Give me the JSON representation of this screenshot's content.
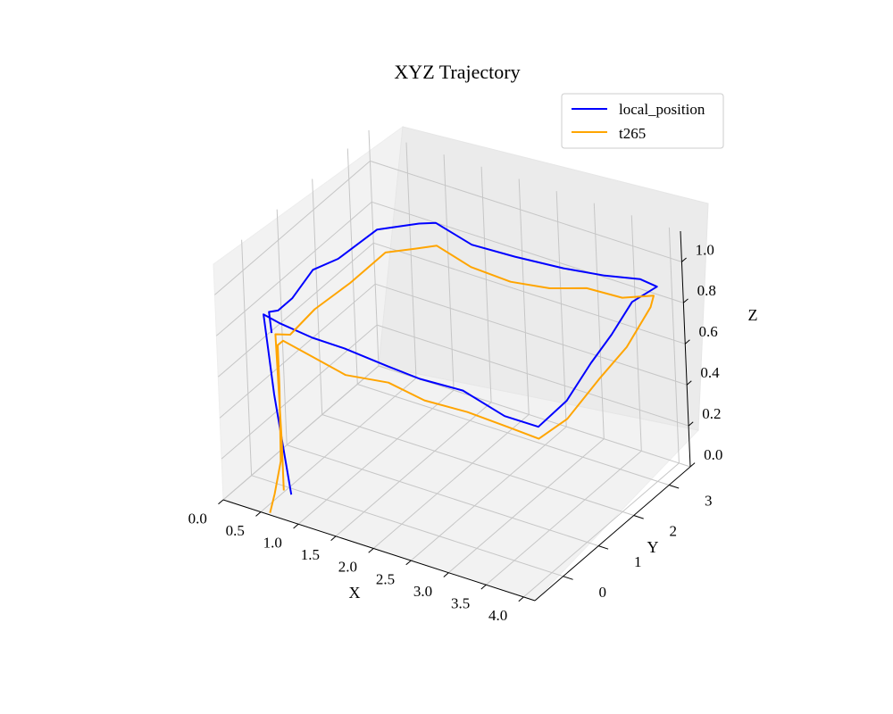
{
  "chart_data": {
    "type": "line",
    "projection": "3d",
    "title": "XYZ Trajectory",
    "xlabel": "X",
    "ylabel": "Y",
    "zlabel": "Z",
    "xlim": [
      0,
      4.15
    ],
    "ylim": [
      -0.8,
      3.6
    ],
    "zlim": [
      0,
      1.15
    ],
    "xticks": [
      "0.0",
      "0.5",
      "1.0",
      "1.5",
      "2.0",
      "2.5",
      "3.0",
      "3.5",
      "4.0"
    ],
    "yticks": [
      "0",
      "1",
      "2",
      "3"
    ],
    "zticks": [
      "0.0",
      "0.2",
      "0.4",
      "0.6",
      "0.8",
      "1.0"
    ],
    "grid": true,
    "legend_position": "top-right",
    "series": [
      {
        "name": "local_position",
        "color": "#0000ff",
        "points": [
          [
            0.6,
            -0.15,
            0.0
          ],
          [
            0.5,
            -0.3,
            0.5
          ],
          [
            0.5,
            -0.5,
            0.92
          ],
          [
            0.65,
            -0.35,
            0.87
          ],
          [
            1.0,
            -0.2,
            0.82
          ],
          [
            1.5,
            -0.35,
            0.85
          ],
          [
            2.0,
            -0.2,
            0.8
          ],
          [
            2.5,
            -0.35,
            0.82
          ],
          [
            3.0,
            -0.2,
            0.8
          ],
          [
            3.5,
            -0.1,
            0.72
          ],
          [
            3.9,
            0.0,
            0.7
          ],
          [
            4.0,
            0.6,
            0.75
          ],
          [
            4.05,
            1.2,
            0.85
          ],
          [
            4.05,
            1.8,
            0.9
          ],
          [
            4.0,
            2.5,
            0.95
          ],
          [
            3.95,
            3.3,
            0.9
          ],
          [
            3.7,
            3.35,
            0.9
          ],
          [
            3.2,
            3.4,
            0.85
          ],
          [
            2.6,
            3.5,
            0.8
          ],
          [
            2.0,
            3.4,
            0.8
          ],
          [
            1.4,
            3.45,
            0.78
          ],
          [
            0.9,
            3.5,
            0.82
          ],
          [
            0.7,
            3.45,
            0.8
          ],
          [
            0.6,
            2.5,
            0.9
          ],
          [
            0.55,
            1.5,
            0.9
          ],
          [
            0.55,
            0.8,
            0.95
          ],
          [
            0.55,
            0.2,
            0.9
          ],
          [
            0.55,
            -0.2,
            0.9
          ],
          [
            0.55,
            -0.45,
            0.93
          ],
          [
            0.55,
            -0.4,
            0.82
          ]
        ]
      },
      {
        "name": "t265",
        "color": "#ffa500",
        "points": [
          [
            0.6,
            -0.75,
            0.0
          ],
          [
            0.55,
            -0.5,
            0.05
          ],
          [
            0.6,
            -0.4,
            0.2
          ],
          [
            0.6,
            -0.35,
            0.55
          ],
          [
            0.65,
            -0.45,
            0.78
          ],
          [
            0.7,
            -0.4,
            0.8
          ],
          [
            1.0,
            -0.3,
            0.75
          ],
          [
            1.5,
            -0.35,
            0.72
          ],
          [
            2.0,
            -0.2,
            0.72
          ],
          [
            2.5,
            -0.25,
            0.7
          ],
          [
            3.0,
            -0.1,
            0.68
          ],
          [
            3.5,
            0.0,
            0.65
          ],
          [
            3.8,
            0.2,
            0.6
          ],
          [
            3.9,
            0.8,
            0.62
          ],
          [
            4.0,
            1.5,
            0.72
          ],
          [
            4.05,
            2.2,
            0.78
          ],
          [
            4.0,
            3.0,
            0.85
          ],
          [
            3.9,
            3.3,
            0.85
          ],
          [
            3.5,
            3.25,
            0.8
          ],
          [
            3.0,
            3.3,
            0.78
          ],
          [
            2.5,
            3.3,
            0.72
          ],
          [
            2.0,
            3.25,
            0.7
          ],
          [
            1.5,
            3.2,
            0.72
          ],
          [
            1.0,
            3.3,
            0.75
          ],
          [
            0.75,
            3.2,
            0.72
          ],
          [
            0.7,
            2.5,
            0.8
          ],
          [
            0.7,
            1.5,
            0.8
          ],
          [
            0.7,
            0.5,
            0.82
          ],
          [
            0.7,
            -0.2,
            0.8
          ],
          [
            0.6,
            -0.4,
            0.82
          ],
          [
            0.6,
            -0.35,
            0.3
          ],
          [
            0.6,
            -0.35,
            0.05
          ]
        ]
      }
    ]
  }
}
